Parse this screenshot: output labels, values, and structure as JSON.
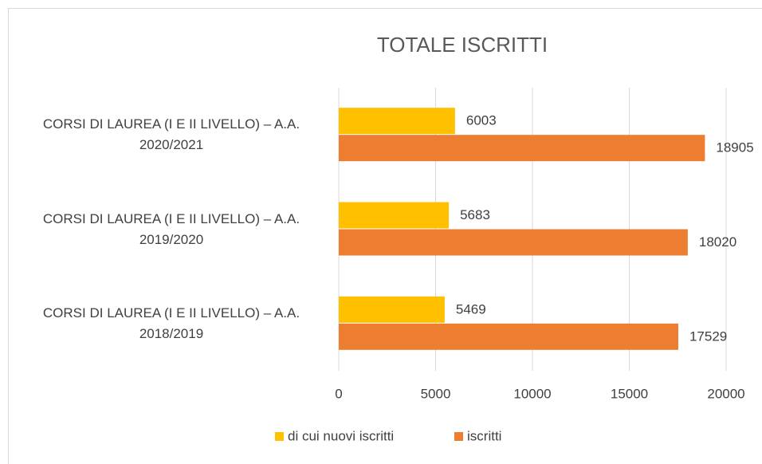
{
  "chart_data": {
    "type": "hbar",
    "title": "TOTALE ISCRITTI",
    "categories": [
      "CORSI DI LAUREA (I E II LIVELLO) – A.A. 2020/2021",
      "CORSI DI LAUREA (I E II LIVELLO) – A.A. 2019/2020",
      "CORSI DI LAUREA (I E II LIVELLO) – A.A. 2018/2019"
    ],
    "series": [
      {
        "name": "di cui nuovi iscritti",
        "color": "#ffc000",
        "values": [
          6003,
          5683,
          5469
        ]
      },
      {
        "name": "iscritti",
        "color": "#ed7d31",
        "values": [
          18905,
          18020,
          17529
        ]
      }
    ],
    "xlim": [
      0,
      20000
    ],
    "xticks": [
      0,
      5000,
      10000,
      15000,
      20000
    ],
    "grid": true,
    "legend": "bottom"
  }
}
